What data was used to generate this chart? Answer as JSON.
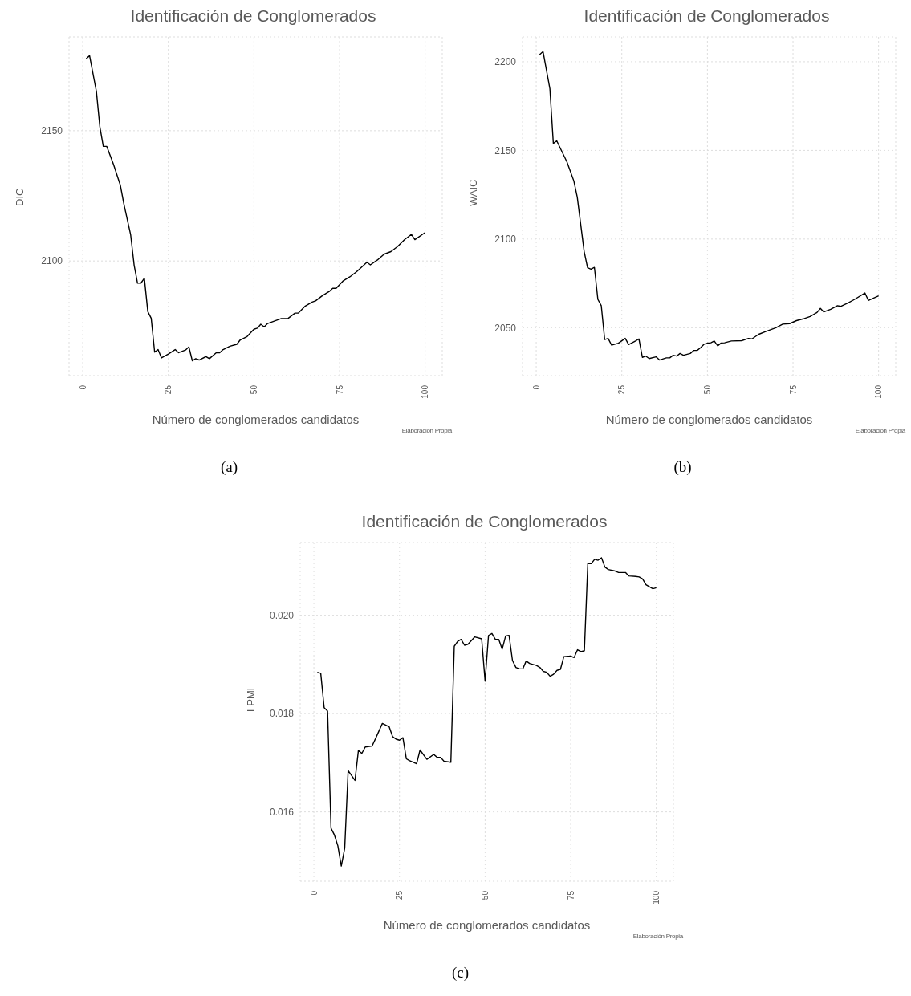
{
  "chart_data": [
    {
      "type": "line",
      "title": "Identificación de Conglomerados",
      "xlabel": "Número de conglomerados candidatos",
      "ylabel": "DIC",
      "annotations": [
        "Elaboración Propia",
        "(a)"
      ],
      "grid": true,
      "xlim": [
        -4,
        105
      ],
      "xticks": [
        0,
        25,
        50,
        75,
        100
      ],
      "ylim": [
        2056,
        2186
      ],
      "yticks": [
        2100,
        2150
      ],
      "series": [
        {
          "color": "#000000",
          "x": [
            1,
            2,
            4,
            5,
            6,
            7,
            9,
            11,
            12,
            14,
            15,
            16,
            17,
            18,
            19,
            20,
            21,
            22,
            23,
            25,
            27,
            28,
            30,
            31,
            32,
            33,
            34,
            36,
            37,
            39,
            40,
            41,
            43,
            45,
            46,
            48,
            50,
            51,
            52,
            53,
            54,
            58,
            60,
            62,
            63,
            65,
            67,
            68,
            70,
            72,
            73,
            74,
            76,
            78,
            80,
            83,
            84,
            86,
            88,
            90,
            92,
            94,
            96,
            97,
            100
          ],
          "values": [
            2177.6,
            2178.8,
            2165,
            2151.5,
            2144,
            2144,
            2137,
            2129,
            2122,
            2110,
            2098.5,
            2091.5,
            2091.5,
            2093.4,
            2080.6,
            2078,
            2065,
            2066,
            2062.8,
            2064.3,
            2066,
            2064.8,
            2065.8,
            2067,
            2061.7,
            2062.5,
            2062,
            2063.3,
            2062.5,
            2064.8,
            2064.8,
            2066,
            2067.3,
            2068,
            2069.7,
            2071,
            2073.8,
            2074.2,
            2075.7,
            2074.7,
            2076,
            2077.9,
            2078,
            2080,
            2080,
            2082.7,
            2084.2,
            2084.7,
            2086.7,
            2088.3,
            2089.5,
            2089.5,
            2092.3,
            2093.9,
            2095.9,
            2099.5,
            2098.5,
            2100.3,
            2102.6,
            2103.6,
            2105.6,
            2108.2,
            2110.2,
            2108.2,
            2110.9
          ]
        }
      ]
    },
    {
      "type": "line",
      "title": "Identificación de Conglomerados",
      "xlabel": "Número de conglomerados candidatos",
      "ylabel": "WAIC",
      "annotations": [
        "Elaboración Propia",
        "(b)"
      ],
      "grid": true,
      "xlim": [
        -4,
        105
      ],
      "xticks": [
        0,
        25,
        50,
        75,
        100
      ],
      "ylim": [
        2023,
        2214
      ],
      "yticks": [
        2050,
        2100,
        2150,
        2200
      ],
      "series": [
        {
          "color": "#000000",
          "x": [
            1,
            2,
            4,
            5,
            6,
            9,
            11,
            12,
            14,
            15,
            16,
            17,
            18,
            19,
            20,
            21,
            22,
            24,
            26,
            27,
            29,
            30,
            31,
            32,
            33,
            35,
            36,
            38,
            39,
            40,
            41,
            42,
            43,
            45,
            46,
            47,
            48,
            49,
            50,
            51,
            52,
            53,
            54,
            55,
            57,
            60,
            62,
            63,
            65,
            67,
            70,
            72,
            74,
            76,
            78,
            80,
            82,
            83,
            84,
            86,
            88,
            89,
            91,
            93,
            96,
            97,
            100
          ],
          "values": [
            2204,
            2205.7,
            2184.7,
            2154,
            2155.4,
            2143.4,
            2132.7,
            2123.5,
            2093,
            2083.8,
            2083,
            2084,
            2066,
            2062.4,
            2043.3,
            2044,
            2040.2,
            2041.3,
            2044,
            2040.5,
            2042.5,
            2043.7,
            2033.3,
            2034,
            2032.6,
            2033.6,
            2031.8,
            2033,
            2033,
            2034.5,
            2034,
            2035.5,
            2034.5,
            2035.5,
            2037.2,
            2037.2,
            2038.7,
            2040.7,
            2041.3,
            2041.5,
            2042.5,
            2039.8,
            2041.4,
            2041.5,
            2042.5,
            2042.7,
            2044,
            2043.7,
            2046.3,
            2047.8,
            2050,
            2052,
            2052.3,
            2054,
            2055,
            2056.3,
            2058.6,
            2060.9,
            2058.9,
            2060.4,
            2062.4,
            2062.1,
            2063.9,
            2066,
            2069.6,
            2065.4,
            2068
          ]
        }
      ]
    },
    {
      "type": "line",
      "title": "Identificación de Conglomerados",
      "xlabel": "Número de conglomerados candidatos",
      "ylabel": "LPML",
      "annotations": [
        "Elaboración Propia",
        "(c)"
      ],
      "grid": true,
      "xlim": [
        -4,
        105
      ],
      "xticks": [
        0,
        25,
        50,
        75,
        100
      ],
      "ylim": [
        0.01459,
        0.02148
      ],
      "yticks": [
        {
          "value": 0.016,
          "label": "0.016"
        },
        {
          "value": 0.018,
          "label": "0.018"
        },
        {
          "value": 0.02,
          "label": "0.020"
        }
      ],
      "series": [
        {
          "color": "#000000",
          "x": [
            1,
            2,
            3,
            4,
            5,
            6,
            7,
            8,
            9,
            10,
            12,
            13,
            14,
            15,
            17,
            18,
            20,
            22,
            23,
            24,
            25,
            26,
            27,
            28,
            30,
            31,
            33,
            35,
            36,
            37,
            38,
            40,
            41,
            42,
            43,
            44,
            45,
            47,
            49,
            50,
            51,
            52,
            53,
            54,
            55,
            56,
            57,
            58,
            59,
            60,
            61,
            62,
            63,
            65,
            66,
            67,
            68,
            69,
            70,
            71,
            72,
            73,
            75,
            76,
            77,
            78,
            79,
            80,
            81,
            82,
            83,
            84,
            85,
            86,
            88,
            89,
            91,
            92,
            94,
            95,
            96,
            97,
            98,
            99,
            100
          ],
          "values": [
            0.01884,
            0.01882,
            0.01812,
            0.01805,
            0.01567,
            0.01553,
            0.01531,
            0.0149,
            0.01526,
            0.01684,
            0.01664,
            0.01725,
            0.01719,
            0.01732,
            0.01734,
            0.01749,
            0.0178,
            0.01773,
            0.01753,
            0.01748,
            0.01746,
            0.01751,
            0.01708,
            0.01704,
            0.01698,
            0.01726,
            0.01707,
            0.01717,
            0.01711,
            0.01711,
            0.01703,
            0.01701,
            0.01937,
            0.01947,
            0.01951,
            0.01939,
            0.01941,
            0.01956,
            0.01952,
            0.01866,
            0.01959,
            0.01963,
            0.01951,
            0.01951,
            0.01931,
            0.01958,
            0.01959,
            0.01908,
            0.01894,
            0.01891,
            0.01891,
            0.01907,
            0.01902,
            0.01898,
            0.01894,
            0.01886,
            0.01884,
            0.01876,
            0.0188,
            0.01888,
            0.0189,
            0.01916,
            0.01917,
            0.01914,
            0.0193,
            0.01926,
            0.01928,
            0.02105,
            0.02105,
            0.02114,
            0.02112,
            0.02117,
            0.02098,
            0.02093,
            0.0209,
            0.02087,
            0.02087,
            0.0208,
            0.02079,
            0.02078,
            0.02074,
            0.02062,
            0.02058,
            0.02054,
            0.02056
          ]
        }
      ]
    }
  ]
}
